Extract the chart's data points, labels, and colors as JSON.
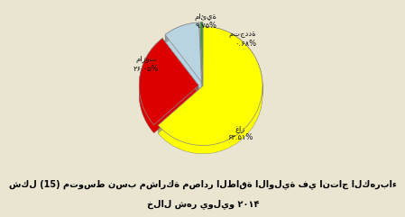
{
  "slices": [
    {
      "label_ar": "غاز",
      "value_str": "۶۳.۵۱%",
      "value": 63.51,
      "color": "#FFFF00",
      "dark_color": "#AAAA00",
      "explode": 0.0
    },
    {
      "label_ar": "مازوت",
      "value_str": "۲۶.۰۵%",
      "value": 26.05,
      "color": "#DD0000",
      "dark_color": "#770000",
      "explode": 0.07
    },
    {
      "label_ar": "مائية",
      "value_str": "۹.۷۵%",
      "value": 9.75,
      "color": "#B8D4E0",
      "dark_color": "#7090A0",
      "explode": 0.07
    },
    {
      "label_ar": "متجددة",
      "value_str": "۰.۶۸%",
      "value": 0.68,
      "color": "#2A9A2A",
      "dark_color": "#115511",
      "explode": 0.07
    }
  ],
  "title_line1": "شكل (15) متوسط نسب مشاركة مصادر الطاقة الاولية في انتاج الكهرباء",
  "title_line2": "خلال شهر يوليو ۲۰۱۴",
  "background_color": "#EAE5D0",
  "title_fontsize": 7.0,
  "startangle": 90,
  "depth": 0.14,
  "n_layers": 14
}
